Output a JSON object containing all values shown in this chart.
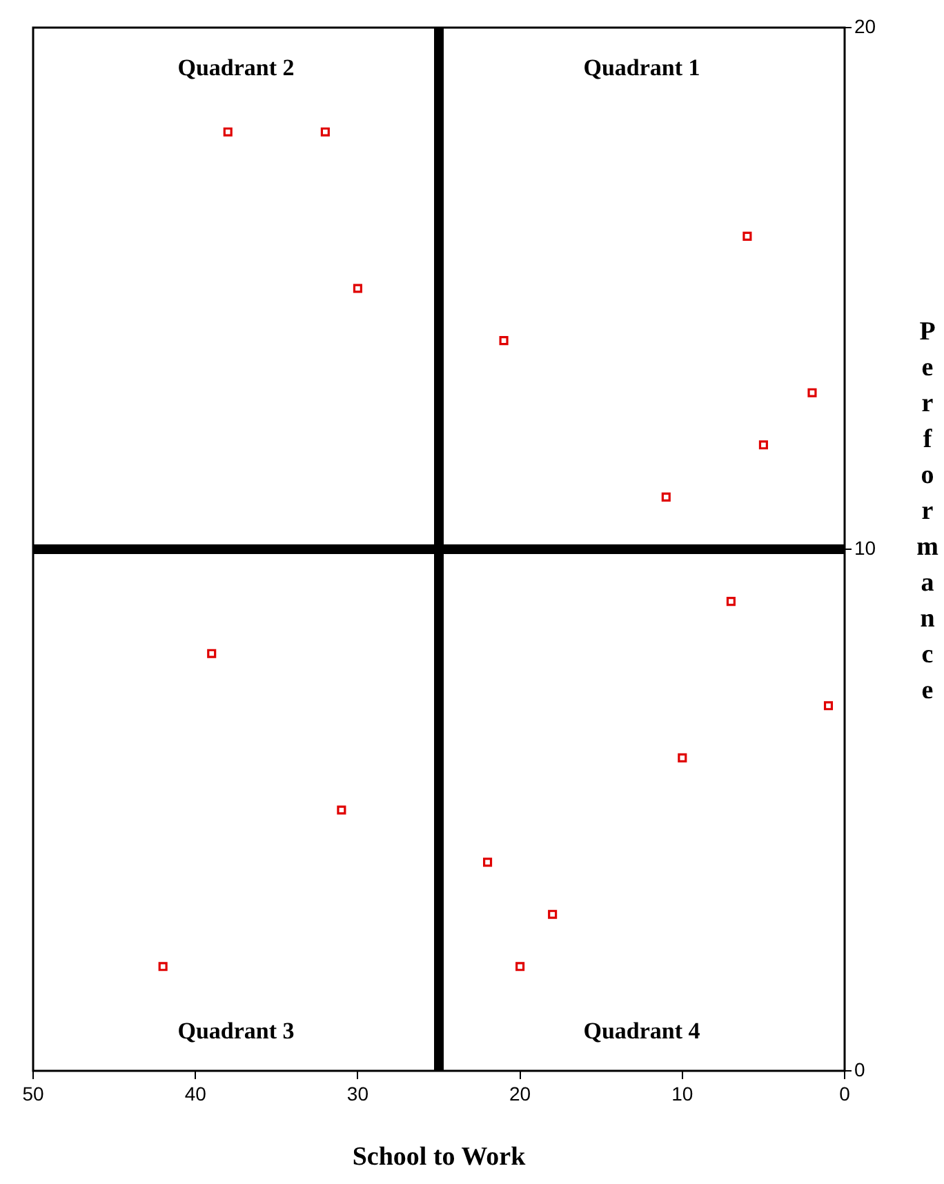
{
  "chart_data": {
    "type": "scatter",
    "xlabel": "School to Work",
    "ylabel": "Performance",
    "xlim": [
      50,
      0
    ],
    "xticks": [
      50,
      40,
      30,
      20,
      10,
      0
    ],
    "ylim": [
      0,
      20
    ],
    "yticks": [
      0,
      10,
      20
    ],
    "grid": false,
    "legend": false,
    "marker": "square",
    "series": [
      {
        "color": "#e00000",
        "x": [
          38,
          32,
          30,
          21,
          6,
          2,
          5,
          11,
          7,
          1,
          10,
          39,
          31,
          22,
          18,
          20,
          42
        ],
        "values": [
          18,
          18,
          15,
          14,
          16,
          13,
          12,
          11,
          9,
          7,
          6,
          8,
          5,
          4,
          3,
          2,
          2
        ]
      }
    ],
    "ref_lines": [
      {
        "axis": "x",
        "value": 25,
        "color": "#000000"
      },
      {
        "axis": "y",
        "value": 10,
        "color": "#000000"
      }
    ],
    "annotations": [
      "Quadrant 2",
      "Quadrant 1",
      "Quadrant 3",
      "Quadrant 4"
    ]
  }
}
